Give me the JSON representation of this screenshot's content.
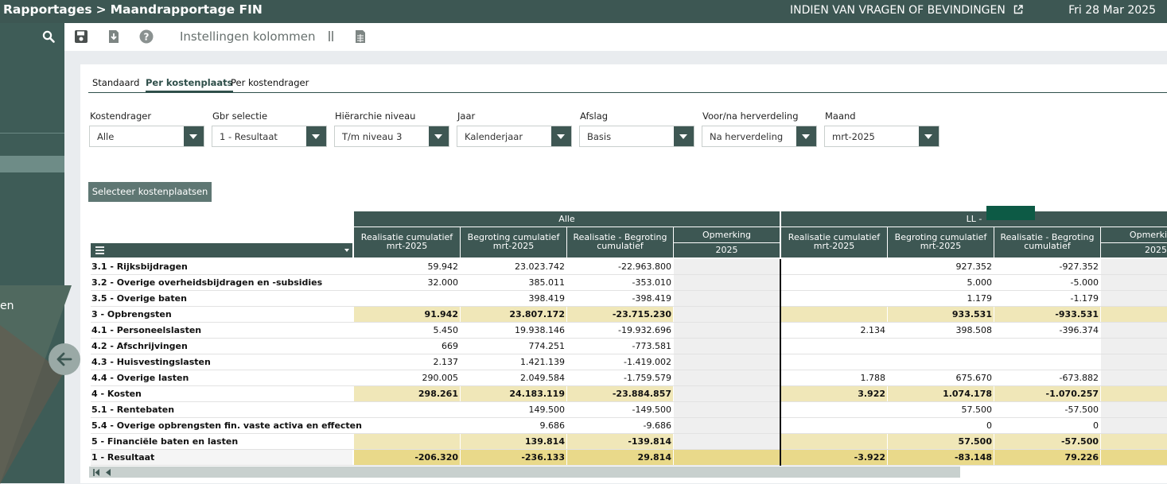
{
  "topbar": {
    "crumb_root": "Rapportages",
    "crumb_sep": ">",
    "crumb_page": "Maandrapportage FIN",
    "help_link": "INDIEN VAN VRAGEN OF BEVINDINGEN",
    "date": "Fri 28 Mar 2025"
  },
  "sidebar": {
    "truncated_label": "en"
  },
  "toolbar": {
    "icons": [
      "save-icon",
      "download-icon",
      "help-icon",
      "column-divider-icon",
      "spreadsheet-icon"
    ],
    "settings_label": "Instellingen kolommen"
  },
  "tabs": [
    {
      "label": "Standaard",
      "active": false
    },
    {
      "label": "Per kostenplaats",
      "active": true
    },
    {
      "label": "Per kostendrager",
      "active": false
    }
  ],
  "filters": [
    {
      "label": "Kostendrager",
      "value": "Alle"
    },
    {
      "label": "Gbr selectie",
      "value": "1 - Resultaat"
    },
    {
      "label": "Hiërarchie niveau",
      "value": "T/m niveau 3"
    },
    {
      "label": "Jaar",
      "value": "Kalenderjaar"
    },
    {
      "label": "Afslag",
      "value": "Basis"
    },
    {
      "label": "Voor/na herverdeling",
      "value": "Na herverdeling"
    },
    {
      "label": "Maand",
      "value": "mrt-2025"
    }
  ],
  "select_button": "Selecteer kostenplaatsen",
  "table": {
    "groups": [
      "Alle",
      "LL - "
    ],
    "columns": {
      "real": [
        "Realisatie cumulatief",
        "mrt-2025"
      ],
      "beg": [
        "Begroting cumulatief",
        "mrt-2025"
      ],
      "diff": [
        "Realisatie - Begroting",
        "cumulatief"
      ],
      "opm": "Opmerking",
      "opm_short": "Opmerki",
      "opm_year": "2025"
    },
    "rows": [
      {
        "label": "3.1 - Rijksbijdragen",
        "type": "normal",
        "a": [
          "59.942",
          "23.023.742",
          "-22.963.800"
        ],
        "b": [
          "",
          "927.352",
          "-927.352"
        ]
      },
      {
        "label": "3.2 - Overige overheidsbijdragen en -subsidies",
        "type": "normal",
        "a": [
          "32.000",
          "385.011",
          "-353.010"
        ],
        "b": [
          "",
          "5.000",
          "-5.000"
        ]
      },
      {
        "label": "3.5 - Overige baten",
        "type": "normal",
        "a": [
          "",
          "398.419",
          "-398.419"
        ],
        "b": [
          "",
          "1.179",
          "-1.179"
        ]
      },
      {
        "label": "3 - Opbrengsten",
        "type": "sub",
        "a": [
          "91.942",
          "23.807.172",
          "-23.715.230"
        ],
        "b": [
          "",
          "933.531",
          "-933.531"
        ]
      },
      {
        "label": "4.1 - Personeelslasten",
        "type": "normal",
        "a": [
          "5.450",
          "19.938.146",
          "-19.932.696"
        ],
        "b": [
          "2.134",
          "398.508",
          "-396.374"
        ]
      },
      {
        "label": "4.2 - Afschrijvingen",
        "type": "normal",
        "a": [
          "669",
          "774.251",
          "-773.581"
        ],
        "b": [
          "",
          "",
          ""
        ]
      },
      {
        "label": "4.3 - Huisvestingslasten",
        "type": "normal",
        "a": [
          "2.137",
          "1.421.139",
          "-1.419.002"
        ],
        "b": [
          "",
          "",
          ""
        ]
      },
      {
        "label": "4.4 - Overige lasten",
        "type": "normal",
        "a": [
          "290.005",
          "2.049.584",
          "-1.759.579"
        ],
        "b": [
          "1.788",
          "675.670",
          "-673.882"
        ]
      },
      {
        "label": "4 - Kosten",
        "type": "sub",
        "a": [
          "298.261",
          "24.183.119",
          "-23.884.857"
        ],
        "b": [
          "3.922",
          "1.074.178",
          "-1.070.257"
        ]
      },
      {
        "label": "5.1 - Rentebaten",
        "type": "normal",
        "a": [
          "",
          "149.500",
          "-149.500"
        ],
        "b": [
          "",
          "57.500",
          "-57.500"
        ]
      },
      {
        "label": "5.4 - Overige opbrengsten fin. vaste activa en effecten",
        "type": "normal",
        "a": [
          "",
          "9.686",
          "-9.686"
        ],
        "b": [
          "",
          "0",
          "0"
        ]
      },
      {
        "label": "5 - Financiële baten en lasten",
        "type": "sub",
        "a": [
          "",
          "139.814",
          "-139.814"
        ],
        "b": [
          "",
          "57.500",
          "-57.500"
        ]
      },
      {
        "label": "1 - Resultaat",
        "type": "res",
        "a": [
          "-206.320",
          "-236.133",
          "29.814"
        ],
        "b": [
          "-3.922",
          "-83.148",
          "79.226"
        ]
      }
    ]
  },
  "colors": {
    "header": "#3d5753",
    "subtotal": "#f0e7b8",
    "result": "#e9d98a"
  }
}
